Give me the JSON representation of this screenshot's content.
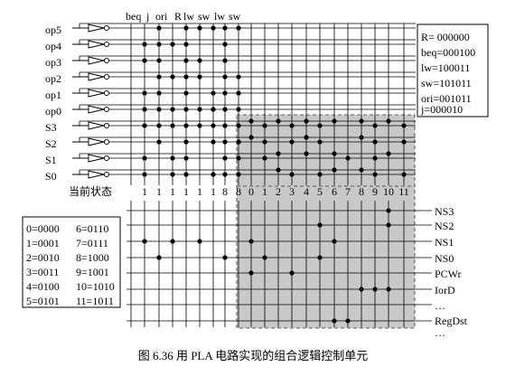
{
  "col_headers": [
    "beq",
    "j",
    "ori",
    "R",
    "lw",
    "sw",
    "lw",
    "sw"
  ],
  "inputs": [
    "op5",
    "op4",
    "op3",
    "op2",
    "op1",
    "op0",
    "S3",
    "S2",
    "S1",
    "S0"
  ],
  "outputs": [
    "NS3",
    "NS2",
    "NS1",
    "NS0",
    "PCWr",
    "IorD",
    "…",
    "RegDst",
    "…"
  ],
  "current_state_label": "当前状态",
  "current_state_values": [
    "1",
    "1",
    "1",
    "1",
    "1",
    "1",
    "8",
    "8",
    "0",
    "1",
    "2",
    "3",
    "4",
    "5",
    "6",
    "7",
    "8",
    "9",
    "10",
    "11"
  ],
  "opcode_box": [
    "R= 000000",
    "beq=000100",
    "lw=100011",
    "sw=101011",
    "ori=001011",
    "j=000010"
  ],
  "state_code_box": [
    [
      "0=0000",
      "6=0110"
    ],
    [
      "1=0001",
      "7=0111"
    ],
    [
      "2=0010",
      "8=1000"
    ],
    [
      "3=0011",
      "9=1001"
    ],
    [
      "4=0100",
      "10=1010"
    ],
    [
      "5=0101",
      "11=1011"
    ]
  ],
  "caption": "图 6.36   用 PLA 电路实现的组合逻辑控制单元",
  "colors": {
    "line": "#000000",
    "shade": "#c8c8c8",
    "background": "#ffffff"
  }
}
